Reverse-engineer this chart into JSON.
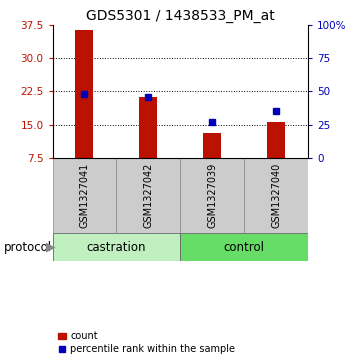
{
  "title": "GDS5301 / 1438533_PM_at",
  "samples": [
    "GSM1327041",
    "GSM1327042",
    "GSM1327039",
    "GSM1327040"
  ],
  "red_values": [
    36.5,
    21.2,
    13.1,
    15.5
  ],
  "blue_values_pct": [
    48,
    46,
    27,
    35
  ],
  "y_min": 7.5,
  "y_max": 37.5,
  "y_ticks_left": [
    7.5,
    15.0,
    22.5,
    30.0,
    37.5
  ],
  "y_ticks_right": [
    0,
    25,
    50,
    75,
    100
  ],
  "y_ticks_right_labels": [
    "0",
    "25",
    "50",
    "75",
    "100%"
  ],
  "red_color": "#bb1100",
  "blue_color": "#0000bb",
  "bar_width": 0.28,
  "group_color_light": "#c0f0c0",
  "group_color_dark": "#66dd66",
  "label_box_color": "#cccccc",
  "legend_count": "count",
  "legend_percentile": "percentile rank within the sample",
  "title_fontsize": 10,
  "tick_fontsize": 7.5,
  "label_fontsize": 8.5,
  "castration_indices": [
    0,
    1
  ],
  "control_indices": [
    2,
    3
  ]
}
